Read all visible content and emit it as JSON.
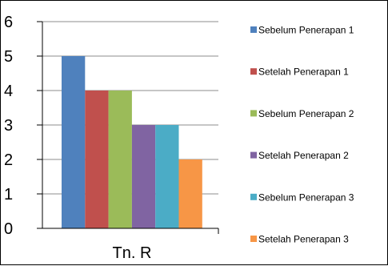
{
  "chart_data": {
    "type": "bar",
    "title": "",
    "xlabel": "",
    "ylabel": "",
    "categories": [
      "Tn. R"
    ],
    "ylim": [
      0,
      6
    ],
    "yticks": [
      "0",
      "1",
      "2",
      "3",
      "4",
      "5",
      "6"
    ],
    "grid": true,
    "legend_position": "right",
    "series": [
      {
        "name": "Sebelum Penerapan 1",
        "color": "#4F81BD",
        "values": [
          5
        ]
      },
      {
        "name": "Setelah Penerapan 1",
        "color": "#C0504D",
        "values": [
          4
        ]
      },
      {
        "name": "Sebelum Penerapan 2",
        "color": "#9BBB59",
        "values": [
          4
        ]
      },
      {
        "name": "Setelah Penerapan 2",
        "color": "#8064A2",
        "values": [
          3
        ]
      },
      {
        "name": "Sebelum Penerapan 3",
        "color": "#4BACC6",
        "values": [
          3
        ]
      },
      {
        "name": "Setelah Penerapan 3",
        "color": "#F79646",
        "values": [
          2
        ]
      }
    ]
  }
}
